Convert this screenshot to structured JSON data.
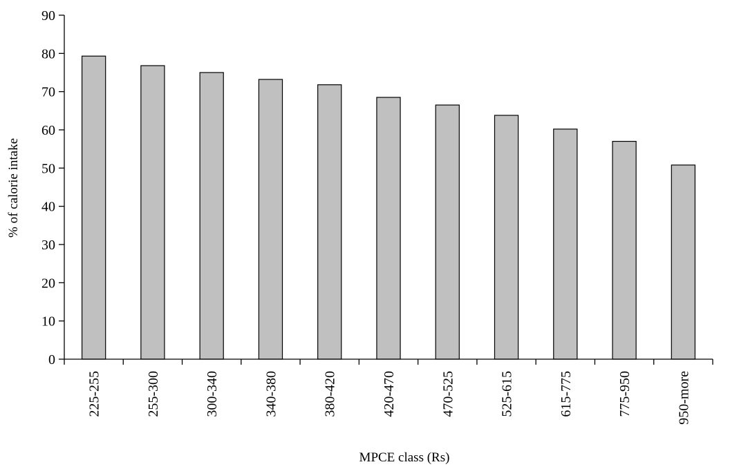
{
  "chart_data": {
    "type": "bar",
    "title": "",
    "xlabel": "MPCE class (Rs)",
    "ylabel": "% of calorie intake",
    "categories": [
      "225-255",
      "255-300",
      "300-340",
      "340-380",
      "380-420",
      "420-470",
      "470-525",
      "525-615",
      "615-775",
      "775-950",
      "950-more"
    ],
    "values": [
      79.3,
      76.8,
      75.0,
      73.2,
      71.8,
      68.5,
      66.5,
      63.8,
      60.2,
      57.0,
      50.8
    ],
    "ylim": [
      0,
      90
    ],
    "yticks": [
      0,
      10,
      20,
      30,
      40,
      50,
      60,
      70,
      80,
      90
    ],
    "ytick_labels": [
      "0",
      "10",
      "20",
      "30",
      "40",
      "50",
      "60",
      "70",
      "80",
      "90"
    ],
    "grid": false,
    "legend": "none",
    "bar_color": "#c0c0c0",
    "edge_color": "#000000"
  }
}
